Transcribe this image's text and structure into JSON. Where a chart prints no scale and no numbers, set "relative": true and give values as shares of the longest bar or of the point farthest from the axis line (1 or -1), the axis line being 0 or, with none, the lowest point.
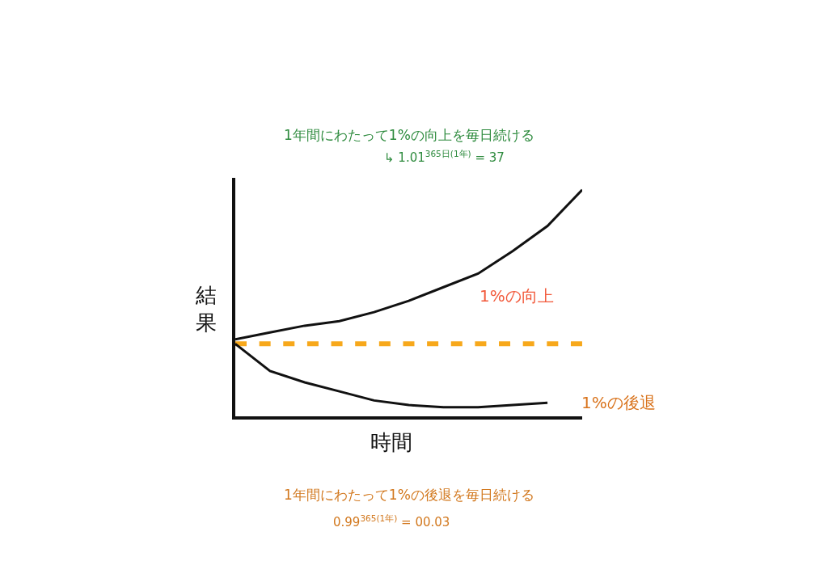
{
  "chart_data": {
    "type": "line",
    "relative": true,
    "xlabel": "時間",
    "ylabel": "結果",
    "legend": false,
    "marker": "none",
    "categories": [
      null,
      null,
      null,
      null,
      null,
      null,
      null,
      null,
      null,
      null,
      null
    ],
    "series": [
      {
        "name": "1%の向上",
        "color": "#111111",
        "values": [
          0.34,
          0.37,
          0.4,
          0.42,
          0.46,
          0.51,
          0.57,
          0.63,
          0.73,
          0.84,
          1.0
        ]
      },
      {
        "color": "#f7a81b",
        "line_style": "dashed",
        "values": [
          0.32,
          0.32,
          0.32,
          0.32,
          0.32,
          0.32,
          0.32,
          0.32,
          0.32,
          0.32,
          0.32
        ]
      },
      {
        "name": "1%の後退",
        "color": "#111111",
        "values": [
          0.32,
          0.2,
          0.15,
          0.11,
          0.07,
          0.05,
          0.04,
          0.04,
          0.05,
          0.06,
          null
        ]
      }
    ],
    "annotations": [
      "1年間にわたって1%の向上を毎日続ける",
      "↳ 1.01$^{365日(1年)}$ = 37",
      "1年間にわたって1%の後退を毎日続ける",
      "0.99$^{365(1年)}$ = 00.03"
    ]
  }
}
